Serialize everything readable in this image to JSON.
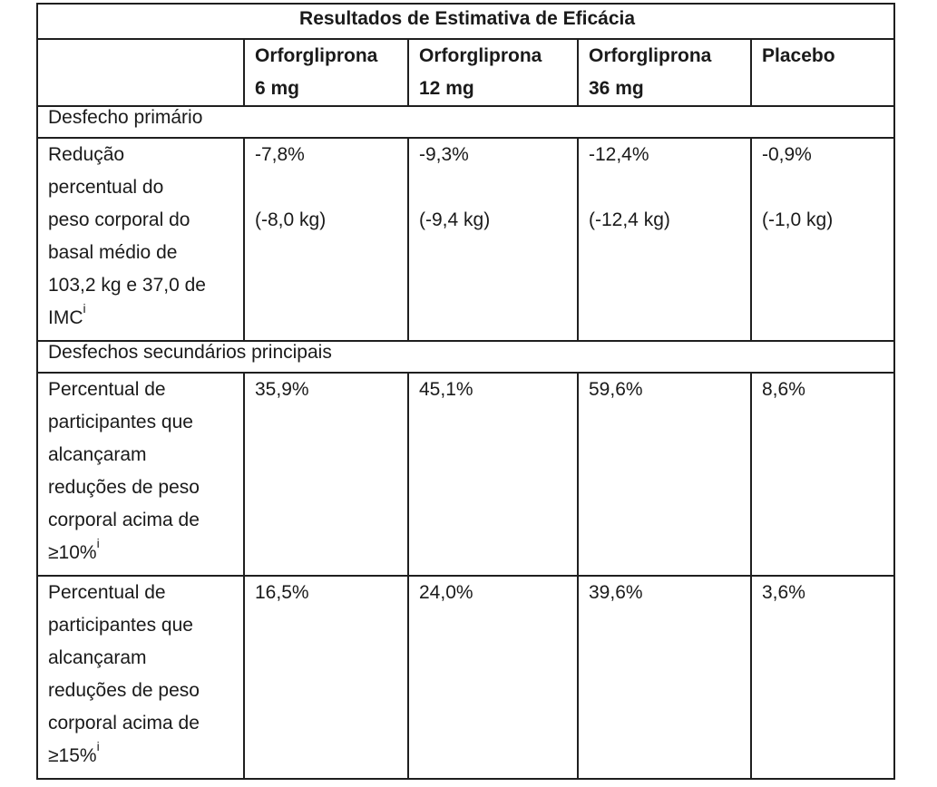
{
  "table": {
    "title": "Resultados de Estimativa de Eficácia",
    "columns": [
      {
        "line1": "Orforglipronа",
        "line2": "6 mg"
      },
      {
        "line1": "Orforglipronа",
        "line2": "12 mg"
      },
      {
        "line1": "Orforglipronа",
        "line2": "36 mg"
      },
      {
        "line1": "Placebo",
        "line2": ""
      }
    ],
    "sections": {
      "primary": "Desfecho primário",
      "secondary": "Desfechos secundários principais"
    },
    "rows": {
      "weight_reduction": {
        "label_lines": [
          "Redução",
          "percentual do",
          "peso corporal do",
          "basal médio de",
          "103,2 kg e 37,0 de",
          "IMC"
        ],
        "note": "i",
        "values": [
          {
            "pct": "-7,8%",
            "kg": "(-8,0 kg)"
          },
          {
            "pct": "-9,3%",
            "kg": "(-9,4 kg)"
          },
          {
            "pct": "-12,4%",
            "kg": "(-12,4 kg)"
          },
          {
            "pct": "-0,9%",
            "kg": "(-1,0 kg)"
          }
        ]
      },
      "ge10": {
        "label_lines": [
          "Percentual de",
          "participantes que",
          "alcançaram",
          "reduções de peso",
          "corporal acima de",
          "≥10%"
        ],
        "note": "i",
        "values": [
          "35,9%",
          "45,1%",
          "59,6%",
          "8,6%"
        ]
      },
      "ge15": {
        "label_lines": [
          "Percentual de",
          "participantes que",
          "alcançaram",
          "reduções de peso",
          "corporal acima de",
          "≥15%"
        ],
        "note": "i",
        "values": [
          "16,5%",
          "24,0%",
          "39,6%",
          "3,6%"
        ]
      }
    }
  }
}
